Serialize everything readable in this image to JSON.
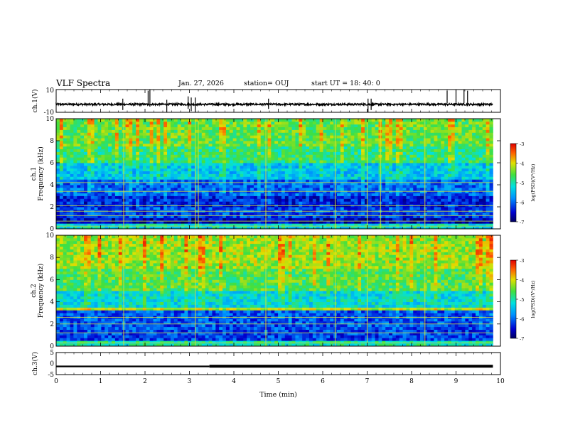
{
  "header": {
    "title": "VLF Spectra",
    "date": "Jan. 27, 2026",
    "station": "station= OUJ",
    "start": "start UT =  18: 40: 0"
  },
  "chart_data": [
    {
      "type": "line",
      "panel": "waveform-ch1",
      "ylabel": "ch.1(V)",
      "ylim": [
        -10,
        10
      ],
      "yticks": [
        "10",
        "-10"
      ],
      "baseline": -3,
      "noise_amplitude": 0.8,
      "spikes": [
        {
          "x": 1.5,
          "y": [
            -8,
            2
          ]
        },
        {
          "x": 2.07,
          "y": [
            -4,
            9
          ]
        },
        {
          "x": 2.11,
          "y": [
            -5,
            10
          ]
        },
        {
          "x": 2.49,
          "y": [
            -10,
            1
          ]
        },
        {
          "x": 2.97,
          "y": [
            -7,
            4
          ]
        },
        {
          "x": 3.04,
          "y": [
            -9,
            3
          ]
        },
        {
          "x": 3.13,
          "y": [
            -10,
            3
          ]
        },
        {
          "x": 4.78,
          "y": [
            -7,
            2
          ]
        },
        {
          "x": 7.02,
          "y": [
            -10,
            2
          ]
        },
        {
          "x": 7.09,
          "y": [
            -8,
            2
          ]
        },
        {
          "x": 8.8,
          "y": [
            -2,
            9
          ]
        },
        {
          "x": 9.0,
          "y": [
            -2,
            10
          ]
        },
        {
          "x": 9.18,
          "y": [
            -2,
            10
          ]
        },
        {
          "x": 9.26,
          "y": [
            -2,
            9
          ]
        }
      ]
    },
    {
      "type": "heatmap",
      "panel": "spectrogram-ch1",
      "ylabel_top": "ch.1",
      "ylabel": "Frequency (kHz)",
      "ylim": [
        0,
        10
      ],
      "yticks": [
        "0",
        "2",
        "4",
        "6",
        "8",
        "10"
      ],
      "xlim": [
        0,
        9.83
      ],
      "bands": [
        {
          "from": 0,
          "to": 0.4,
          "level": 0.45
        },
        {
          "from": 0.4,
          "to": 1.0,
          "level": 0.1
        },
        {
          "from": 1.0,
          "to": 2.0,
          "level": 0.2
        },
        {
          "from": 2.0,
          "to": 3.0,
          "level": 0.15
        },
        {
          "from": 3.0,
          "to": 4.5,
          "level": 0.25
        },
        {
          "from": 4.5,
          "to": 6.0,
          "level": 0.4
        },
        {
          "from": 6.0,
          "to": 7.5,
          "level": 0.55
        },
        {
          "from": 7.5,
          "to": 10.0,
          "level": 0.62
        }
      ],
      "horizontal_lines_khz": [
        0.25,
        0.7,
        1.2,
        1.6,
        2.1,
        3.4,
        4.2
      ],
      "vertical_events_min": [
        1.52,
        3.13,
        3.2,
        4.72,
        6.28,
        7.0,
        7.3,
        8.3
      ]
    },
    {
      "type": "heatmap",
      "panel": "spectrogram-ch2",
      "ylabel_top": "ch.2",
      "ylabel": "Frequency (kHz)",
      "ylim": [
        0,
        10
      ],
      "yticks": [
        "0",
        "2",
        "4",
        "6",
        "8",
        "10"
      ],
      "xlim": [
        0,
        9.83
      ],
      "bands": [
        {
          "from": 0,
          "to": 0.5,
          "level": 0.5
        },
        {
          "from": 0.5,
          "to": 1.5,
          "level": 0.2
        },
        {
          "from": 1.5,
          "to": 3.2,
          "level": 0.22
        },
        {
          "from": 3.2,
          "to": 3.6,
          "level": 0.7
        },
        {
          "from": 3.6,
          "to": 5.0,
          "level": 0.45
        },
        {
          "from": 5.0,
          "to": 7.0,
          "level": 0.6
        },
        {
          "from": 7.0,
          "to": 10.0,
          "level": 0.68
        }
      ],
      "horizontal_lines_khz": [
        0.3,
        1.2,
        2.0,
        2.6,
        3.4
      ],
      "vertical_events_min": [
        1.52,
        3.13,
        4.72,
        6.28,
        7.0,
        8.3
      ]
    },
    {
      "type": "line",
      "panel": "waveform-ch3",
      "ylabel": "ch.3(V)",
      "ylim": [
        -5,
        5
      ],
      "yticks": [
        "5",
        "0",
        "-5"
      ],
      "segments": [
        {
          "x": [
            0,
            3.45
          ],
          "y": -1.3
        },
        {
          "x": [
            3.45,
            9.83
          ],
          "y": -1.2
        }
      ],
      "xlabel": "Time (min)",
      "xlim": [
        0,
        10
      ],
      "xticks": [
        "0",
        "1",
        "2",
        "3",
        "4",
        "5",
        "6",
        "7",
        "8",
        "9",
        "10"
      ]
    }
  ],
  "colorbars": [
    {
      "label": "log(PSD)(V²/Hz)",
      "ticks": [
        "-3",
        "-4",
        "-5",
        "-6",
        "-7"
      ],
      "range": [
        -7,
        -3
      ]
    },
    {
      "label": "log(PSD)(V²/Hz)",
      "ticks": [
        "-3",
        "-4",
        "-5",
        "-6",
        "-7"
      ],
      "range": [
        -7,
        -3
      ]
    }
  ]
}
